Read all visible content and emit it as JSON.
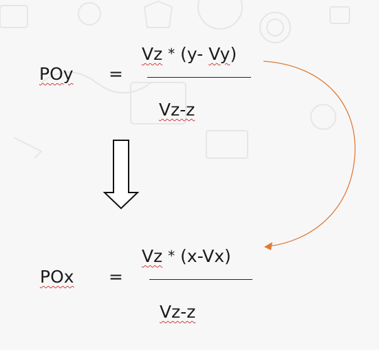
{
  "equation_y": {
    "lhs": "POy",
    "equals": "=",
    "numerator": {
      "vz": "Vz",
      "star": "*",
      "open": "(y-",
      "var": "Vy",
      "close": ")"
    },
    "denominator": "Vz-z"
  },
  "equation_x": {
    "lhs": "POx",
    "equals": "=",
    "numerator": {
      "vz": "Vz",
      "star": "*",
      "rest": "(x-Vx)"
    },
    "denominator": "Vz-z"
  },
  "colors": {
    "curve_arrow": "#e07b39",
    "text": "#1a1a1a",
    "spell_underline": "#d23b3b"
  }
}
